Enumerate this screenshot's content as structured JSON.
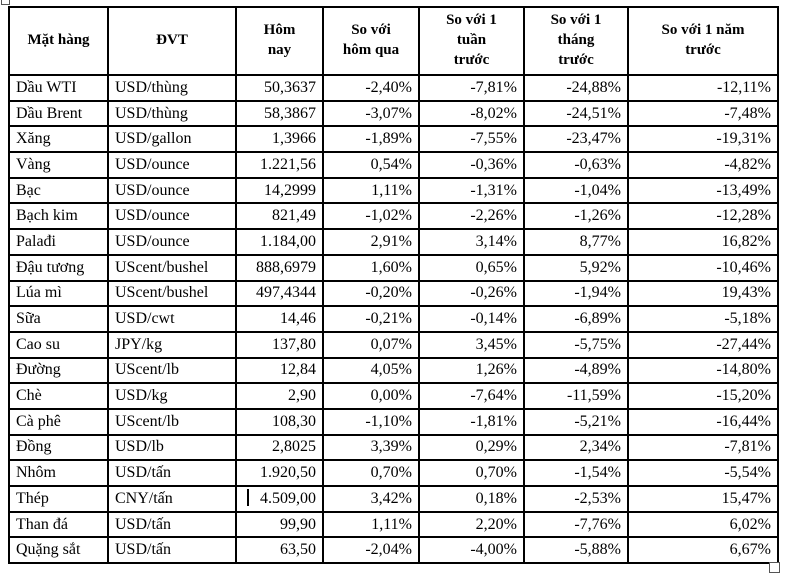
{
  "table": {
    "columns": [
      {
        "key": "name",
        "label": "Mặt hàng"
      },
      {
        "key": "unit",
        "label": "ĐVT"
      },
      {
        "key": "today",
        "label": "Hôm\nnay"
      },
      {
        "key": "vs_yesterday",
        "label": "So với\nhôm qua"
      },
      {
        "key": "vs_week",
        "label": "So với 1\ntuần\ntrước"
      },
      {
        "key": "vs_month",
        "label": "So với 1\ntháng\ntrước"
      },
      {
        "key": "vs_year",
        "label": "So với 1 năm\ntrước"
      }
    ],
    "rows": [
      [
        "Dầu WTI",
        "USD/thùng",
        "50,3637",
        "-2,40%",
        "-7,81%",
        "-24,88%",
        "-12,11%"
      ],
      [
        "Dầu Brent",
        "USD/thùng",
        "58,3867",
        "-3,07%",
        "-8,02%",
        "-24,51%",
        "-7,48%"
      ],
      [
        "Xăng",
        "USD/gallon",
        "1,3966",
        "-1,89%",
        "-7,55%",
        "-23,47%",
        "-19,31%"
      ],
      [
        "Vàng",
        "USD/ounce",
        "1.221,56",
        "0,54%",
        "-0,36%",
        "-0,63%",
        "-4,82%"
      ],
      [
        "Bạc",
        "USD/ounce",
        "14,2999",
        "1,11%",
        "-1,31%",
        "-1,04%",
        "-13,49%"
      ],
      [
        "Bạch kim",
        "USD/ounce",
        "821,49",
        "-1,02%",
        "-2,26%",
        "-1,26%",
        "-12,28%"
      ],
      [
        "Palađi",
        "USD/ounce",
        "1.184,00",
        "2,91%",
        "3,14%",
        "8,77%",
        "16,82%"
      ],
      [
        "Đậu tương",
        "UScent/bushel",
        "888,6979",
        "1,60%",
        "0,65%",
        "5,92%",
        "-10,46%"
      ],
      [
        "Lúa mì",
        "UScent/bushel",
        "497,4344",
        "-0,20%",
        "-0,26%",
        "-1,94%",
        "19,43%"
      ],
      [
        "Sữa",
        "USD/cwt",
        "14,46",
        "-0,21%",
        "-0,14%",
        "-6,89%",
        "-5,18%"
      ],
      [
        "Cao su",
        "JPY/kg",
        "137,80",
        "0,07%",
        "3,45%",
        "-5,75%",
        "-27,44%"
      ],
      [
        "Đường",
        "UScent/lb",
        "12,84",
        "4,05%",
        "1,26%",
        "-4,89%",
        "-14,80%"
      ],
      [
        "Chè",
        "USD/kg",
        "2,90",
        "0,00%",
        "-7,64%",
        "-11,59%",
        "-15,20%"
      ],
      [
        "Cà phê",
        "UScent/lb",
        "108,30",
        "-1,10%",
        "-1,81%",
        "-5,21%",
        "-16,44%"
      ],
      [
        "Đồng",
        "USD/lb",
        "2,8025",
        "3,39%",
        "0,29%",
        "2,34%",
        "-7,81%"
      ],
      [
        "Nhôm",
        "USD/tấn",
        "1.920,50",
        "0,70%",
        "0,70%",
        "-1,54%",
        "-5,54%"
      ],
      [
        "Thép",
        "CNY/tấn",
        "4.509,00",
        "3,42%",
        "0,18%",
        "-2,53%",
        "15,47%"
      ],
      [
        "Than đá",
        "USD/tấn",
        "99,90",
        "1,11%",
        "2,20%",
        "-7,76%",
        "6,02%"
      ],
      [
        "Quặng sắt",
        "USD/tấn",
        "63,50",
        "-2,04%",
        "-4,00%",
        "-5,88%",
        "6,67%"
      ]
    ]
  },
  "colors": {
    "border": "#000000",
    "text": "#000000",
    "background": "#ffffff"
  }
}
